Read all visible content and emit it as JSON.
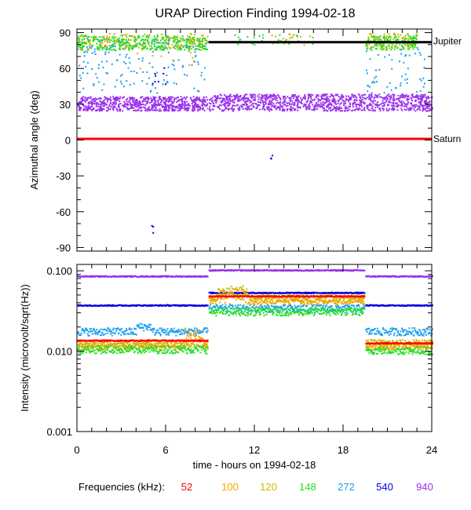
{
  "title": "URAP Direction Finding  1994-02-18",
  "chart_data": [
    {
      "type": "scatter",
      "name": "azimuth-panel",
      "ylabel": "Azimuthal angle (deg)",
      "ylim": [
        -93,
        93
      ],
      "xlim": [
        0,
        24
      ],
      "yticks": [
        90,
        60,
        30,
        0,
        -30,
        -60,
        -90
      ],
      "ytick_labels": [
        "90",
        "60",
        "30",
        "0",
        "-30",
        "-60",
        "-90"
      ],
      "reference_lines": [
        {
          "label": "Jupiter",
          "value": 82,
          "color": "#000000"
        },
        {
          "label": "Saturn",
          "value": 1,
          "color": "#ff0000"
        }
      ],
      "series": [
        {
          "name": "52",
          "segments": [],
          "scatter_clusters": []
        },
        {
          "name": "100",
          "scatter_clusters": [
            {
              "x": [
                0,
                8.8
              ],
              "y": [
                78,
                88
              ],
              "n": 80
            },
            {
              "x": [
                19.5,
                23
              ],
              "y": [
                78,
                88
              ],
              "n": 40
            }
          ]
        },
        {
          "name": "120",
          "scatter_clusters": [
            {
              "x": [
                0,
                8.8
              ],
              "y": [
                76,
                90
              ],
              "n": 150
            },
            {
              "x": [
                13,
                16
              ],
              "y": [
                80,
                90
              ],
              "n": 20
            },
            {
              "x": [
                19.5,
                23
              ],
              "y": [
                76,
                90
              ],
              "n": 70
            },
            {
              "x": [
                4,
                8
              ],
              "y": [
                60,
                78
              ],
              "n": 15
            }
          ]
        },
        {
          "name": "148",
          "scatter_clusters": [
            {
              "x": [
                0,
                8.8
              ],
              "y": [
                76,
                88
              ],
              "n": 300
            },
            {
              "x": [
                10.5,
                16
              ],
              "y": [
                80,
                89
              ],
              "n": 30
            },
            {
              "x": [
                19.5,
                23
              ],
              "y": [
                76,
                88
              ],
              "n": 150
            }
          ]
        },
        {
          "name": "272",
          "scatter_clusters": [
            {
              "x": [
                0,
                8.8
              ],
              "y": [
                40,
                80
              ],
              "n": 120
            },
            {
              "x": [
                19.5,
                23.5
              ],
              "y": [
                40,
                80
              ],
              "n": 60
            },
            {
              "x": [
                0,
                8.8
              ],
              "y": [
                76,
                86
              ],
              "n": 80
            }
          ]
        },
        {
          "name": "540",
          "scatter_clusters": [
            {
              "x": [
                5,
                6
              ],
              "y": [
                45,
                68
              ],
              "n": 8
            },
            {
              "x": [
                13,
                13.2
              ],
              "y": [
                -5,
                -15
              ],
              "n": 3
            },
            {
              "x": [
                5,
                5.2
              ],
              "y": [
                -70,
                -80
              ],
              "n": 3
            }
          ]
        },
        {
          "name": "940",
          "scatter_clusters": [
            {
              "x": [
                0,
                8.8
              ],
              "y": [
                25,
                37
              ],
              "n": 700
            },
            {
              "x": [
                8.9,
                24
              ],
              "y": [
                25,
                39
              ],
              "n": 1100
            }
          ]
        }
      ]
    },
    {
      "type": "line",
      "name": "intensity-panel",
      "ylabel": "Intensity (microvolt/sqrt(Hz))",
      "yscale": "log",
      "ylim": [
        0.001,
        0.12
      ],
      "xlim": [
        0,
        24
      ],
      "xlabel": "time - hours on 1994-02-18",
      "xticks": [
        0,
        6,
        12,
        18,
        24
      ],
      "xtick_labels": [
        "0",
        "6",
        "12",
        "18",
        "24"
      ],
      "yticks": [
        0.1,
        0.01,
        0.001
      ],
      "ytick_labels": [
        "0.100",
        "0.010",
        "0.001"
      ],
      "series": [
        {
          "name": "52",
          "levels": [
            [
              0,
              8.8,
              0.0135
            ],
            [
              8.9,
              19.4,
              0.048
            ],
            [
              19.5,
              24,
              0.0125
            ]
          ]
        },
        {
          "name": "100",
          "levels": [
            [
              0,
              8.8,
              0.0115
            ],
            [
              8.9,
              19.4,
              0.043
            ],
            [
              19.5,
              24,
              0.0115
            ]
          ]
        },
        {
          "name": "120",
          "levels": [
            [
              0,
              8.8,
              0.0125
            ],
            [
              8.9,
              19.4,
              0.046
            ],
            [
              19.5,
              24,
              0.0125
            ]
          ]
        },
        {
          "name": "148",
          "levels": [
            [
              0,
              8.8,
              0.0105
            ],
            [
              8.9,
              19.4,
              0.031
            ],
            [
              19.5,
              24,
              0.0102
            ]
          ]
        },
        {
          "name": "272",
          "levels": [
            [
              0,
              8.8,
              0.0175
            ],
            [
              8.9,
              19.4,
              0.034
            ],
            [
              19.5,
              24,
              0.0175
            ]
          ]
        },
        {
          "name": "540",
          "levels": [
            [
              0,
              8.8,
              0.037
            ],
            [
              8.9,
              19.4,
              0.053
            ],
            [
              19.5,
              24,
              0.037
            ]
          ]
        },
        {
          "name": "940",
          "levels": [
            [
              0,
              8.8,
              0.085
            ],
            [
              8.9,
              19.4,
              0.101
            ],
            [
              19.5,
              24,
              0.085
            ]
          ]
        }
      ]
    }
  ],
  "legend": {
    "label": "Frequencies (kHz):",
    "items": [
      {
        "name": "52",
        "color": "#ff0000"
      },
      {
        "name": "100",
        "color": "#ffa000"
      },
      {
        "name": "120",
        "color": "#d2b400"
      },
      {
        "name": "148",
        "color": "#22e022"
      },
      {
        "name": "272",
        "color": "#1aa0f0"
      },
      {
        "name": "540",
        "color": "#0000e0"
      },
      {
        "name": "940",
        "color": "#9a30ee"
      }
    ]
  }
}
